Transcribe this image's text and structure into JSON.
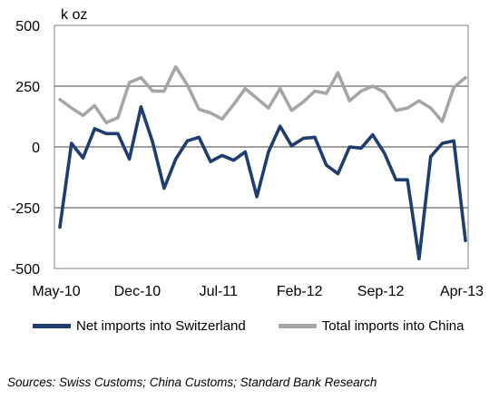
{
  "chart_data": {
    "type": "line",
    "unit_label": "k oz",
    "y_ticks": [
      "500",
      "250",
      "0",
      "-250",
      "-500"
    ],
    "y_tick_values": [
      500,
      250,
      0,
      -250,
      -500
    ],
    "ylim": [
      -500,
      500
    ],
    "x_tick_labels": [
      "May-10",
      "Dec-10",
      "Jul-11",
      "Feb-12",
      "Sep-12",
      "Apr-13"
    ],
    "x_tick_indices": [
      0,
      7,
      14,
      21,
      28,
      35
    ],
    "x": [
      "May-10",
      "Jun-10",
      "Jul-10",
      "Aug-10",
      "Sep-10",
      "Oct-10",
      "Nov-10",
      "Dec-10",
      "Jan-11",
      "Feb-11",
      "Mar-11",
      "Apr-11",
      "May-11",
      "Jun-11",
      "Jul-11",
      "Aug-11",
      "Sep-11",
      "Oct-11",
      "Nov-11",
      "Dec-11",
      "Jan-12",
      "Feb-12",
      "Mar-12",
      "Apr-12",
      "May-12",
      "Jun-12",
      "Jul-12",
      "Aug-12",
      "Sep-12",
      "Oct-12",
      "Nov-12",
      "Dec-12",
      "Jan-13",
      "Feb-13",
      "Mar-13",
      "Apr-13"
    ],
    "grid": true,
    "legend_position": "bottom",
    "series": [
      {
        "name": "Net imports into Switzerland",
        "color": "#1f3d6e",
        "values": [
          -330,
          15,
          -45,
          75,
          55,
          55,
          -50,
          165,
          20,
          -170,
          -50,
          25,
          40,
          -60,
          -35,
          -55,
          -20,
          -205,
          -20,
          85,
          5,
          35,
          40,
          -75,
          -110,
          0,
          -5,
          50,
          -25,
          -135,
          -135,
          -460,
          -40,
          15,
          25,
          -385
        ]
      },
      {
        "name": "Total imports into China",
        "color": "#a6a6a6",
        "values": [
          195,
          160,
          130,
          170,
          100,
          120,
          265,
          285,
          230,
          230,
          330,
          255,
          155,
          140,
          115,
          175,
          240,
          200,
          160,
          240,
          150,
          185,
          230,
          220,
          305,
          190,
          230,
          250,
          225,
          150,
          160,
          190,
          160,
          105,
          245,
          285
        ]
      }
    ],
    "source": "Sources: Swiss Customs; China Customs; Standard Bank Research"
  }
}
